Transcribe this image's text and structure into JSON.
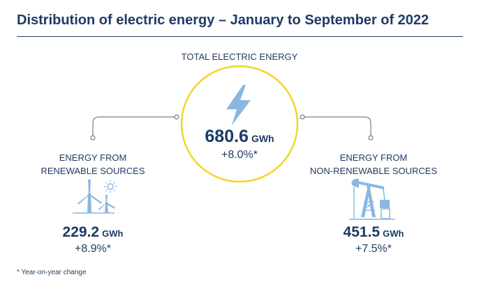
{
  "title": "Distribution of electric energy – January to September of 2022",
  "total": {
    "caption": "TOTAL ELECTRIC ENERGY",
    "value": "680.6",
    "unit": "GWh",
    "change": "+8.0%*",
    "icon": "lightning-bolt-icon"
  },
  "renewable": {
    "caption_line1": "ENERGY FROM",
    "caption_line2": "RENEWABLE SOURCES",
    "value": "229.2",
    "unit": "GWh",
    "change": "+8.9%*",
    "icon": "wind-turbines-sun-icon"
  },
  "non_renewable": {
    "caption_line1": "ENERGY FROM",
    "caption_line2": "NON-RENEWABLE SOURCES",
    "value": "451.5",
    "unit": "GWh",
    "change": "+7.5%*",
    "icon": "oil-pumpjack-icon"
  },
  "footnote": "* Year-on-year change",
  "colors": {
    "title": "#1f3b66",
    "text": "#1e3a5f",
    "circle": "#f3d42b",
    "icon": "#8ab7e0",
    "connector": "#5a6470"
  }
}
